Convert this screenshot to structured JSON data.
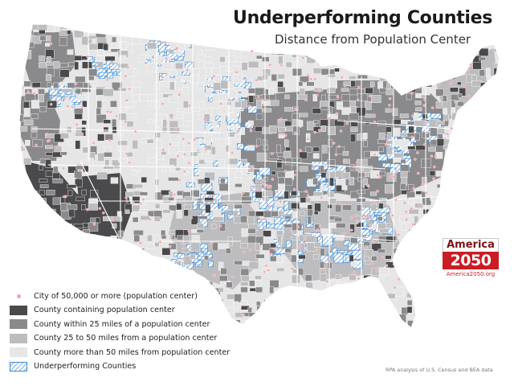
{
  "title": "Underperforming Counties",
  "subtitle": "Distance from Population Center",
  "legend": [
    {
      "key": "city",
      "label": "City of 50,000 or more (population center)",
      "color": "#f4a3ad"
    },
    {
      "key": "containing",
      "label": "County containing population center",
      "color": "#4a4a4c"
    },
    {
      "key": "within25",
      "label": "County within 25 miles of a population center",
      "color": "#8a8a8c"
    },
    {
      "key": "within50",
      "label": "County 25 to 50 miles from a population center",
      "color": "#bdbdbf"
    },
    {
      "key": "beyond50",
      "label": "County more than 50 miles from population center",
      "color": "#e6e6e6"
    },
    {
      "key": "underperforming",
      "label": "Underperforming Counties",
      "color": "#3f8bd0"
    }
  ],
  "badge": {
    "line1": "America",
    "line2": "2050",
    "url": "America2050.org"
  },
  "credit": "RPA analysis of U.S. Census and BEA data",
  "colors": {
    "state_border": "#ffffff",
    "hatch": "#3f8bd0",
    "city_dot": "#f4a3ad",
    "badge_red": "#c81e24"
  }
}
